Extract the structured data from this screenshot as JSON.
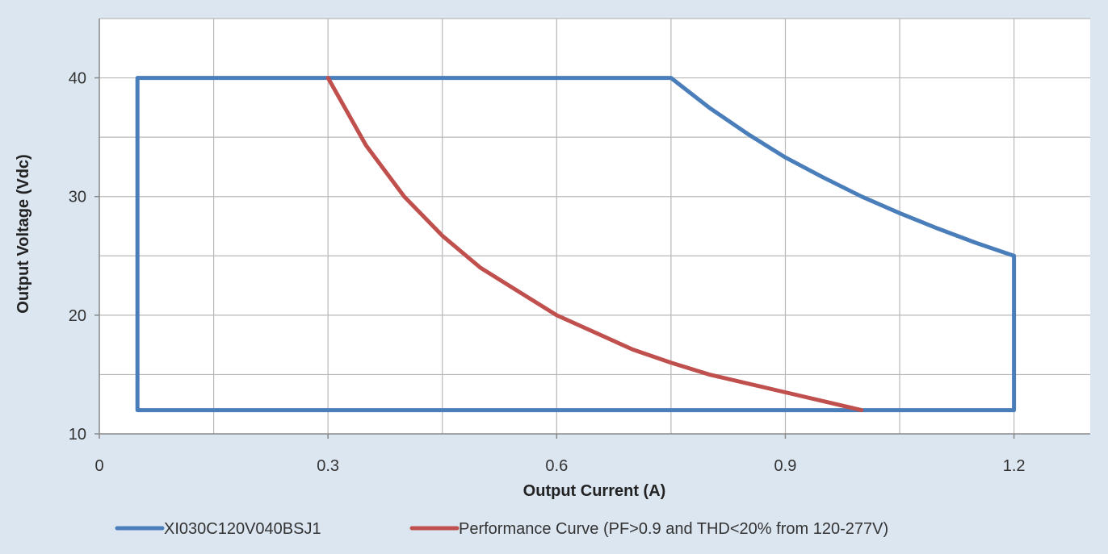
{
  "chart_data": {
    "type": "line",
    "title": "",
    "xlabel": "Output Current (A)",
    "ylabel": "Output Voltage (Vdc)",
    "xlim": [
      0,
      1.3
    ],
    "ylim": [
      10,
      45
    ],
    "x_ticks": [
      0,
      0.3,
      0.6,
      0.9,
      1.2
    ],
    "x_tick_labels": [
      "0",
      "0.3",
      "0.6",
      "0.9",
      "1.2"
    ],
    "x_minor_gridlines": [
      0.15,
      0.45,
      0.75,
      1.05
    ],
    "y_ticks": [
      10,
      20,
      30,
      40
    ],
    "y_tick_labels": [
      "10",
      "20",
      "30",
      "40"
    ],
    "y_minor_gridlines": [
      15,
      25,
      35,
      45
    ],
    "grid": true,
    "legend_position": "bottom",
    "series": [
      {
        "name": "XI030C120V040BSJ1",
        "color": "#4a7ebb",
        "x": [
          0.05,
          0.05,
          0.75,
          0.8,
          0.85,
          0.9,
          0.95,
          1.0,
          1.05,
          1.1,
          1.15,
          1.2,
          1.2,
          0.05
        ],
        "y": [
          12,
          40,
          40,
          37.5,
          35.3,
          33.3,
          31.6,
          30,
          28.6,
          27.3,
          26.1,
          25,
          12,
          12
        ]
      },
      {
        "name": "Performance Curve (PF>0.9 and THD<20% from 120-277V)",
        "color": "#c0504d",
        "x": [
          0.3,
          0.35,
          0.4,
          0.45,
          0.5,
          0.6,
          0.7,
          0.75,
          0.8,
          0.9,
          1.0
        ],
        "y": [
          40,
          34.3,
          30,
          26.7,
          24,
          20,
          17.1,
          16,
          15,
          13.5,
          12
        ]
      }
    ]
  }
}
